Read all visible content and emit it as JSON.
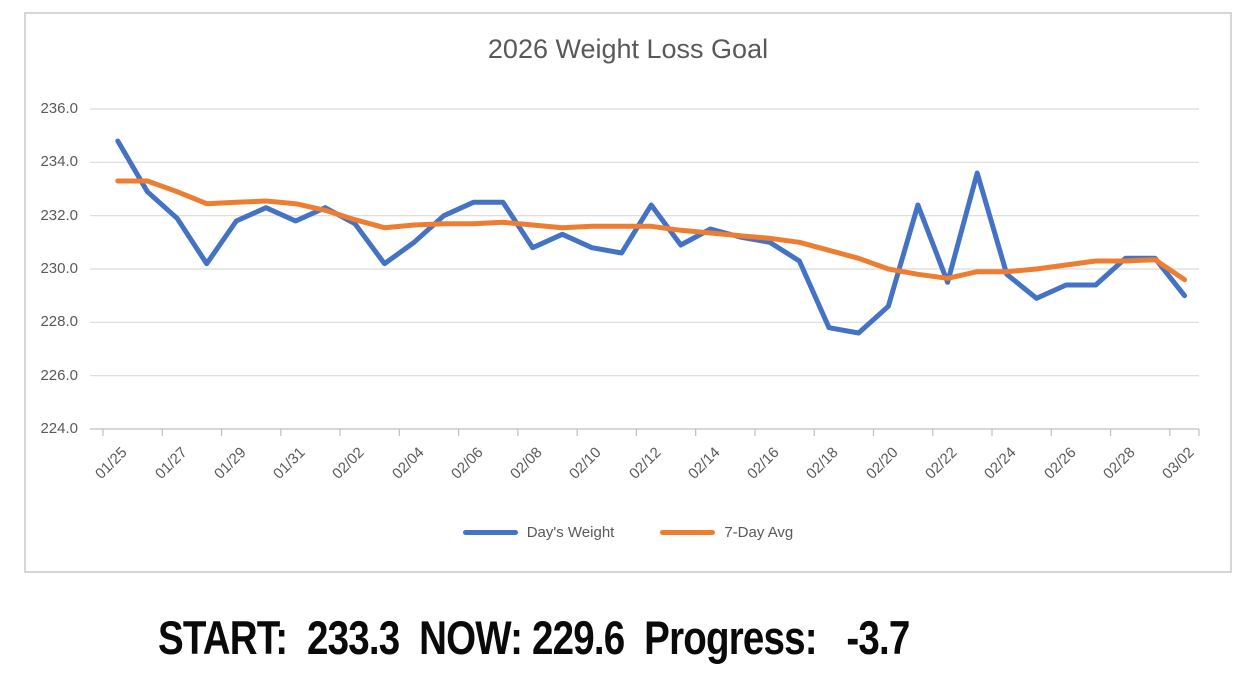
{
  "chart_data": {
    "type": "line",
    "title": "2026 Weight Loss Goal",
    "grid": "horizontal",
    "legend_position": "bottom",
    "ylim": [
      224.0,
      236.0
    ],
    "y_ticks": [
      {
        "label": "236.0",
        "value": 236.0
      },
      {
        "label": "234.0",
        "value": 234.0
      },
      {
        "label": "232.0",
        "value": 232.0
      },
      {
        "label": "230.0",
        "value": 230.0
      },
      {
        "label": "228.0",
        "value": 228.0
      },
      {
        "label": "226.0",
        "value": 226.0
      },
      {
        "label": "224.0",
        "value": 224.0
      }
    ],
    "x_tick_labels": [
      "01/25",
      "01/27",
      "01/29",
      "01/31",
      "02/02",
      "02/04",
      "02/06",
      "02/08",
      "02/10",
      "02/12",
      "02/14",
      "02/16",
      "02/18",
      "02/20",
      "02/22",
      "02/24",
      "02/26",
      "02/28",
      "03/02"
    ],
    "x_all_dates": [
      "01/25",
      "01/26",
      "01/27",
      "01/28",
      "01/29",
      "01/30",
      "01/31",
      "02/01",
      "02/02",
      "02/03",
      "02/04",
      "02/05",
      "02/06",
      "02/07",
      "02/08",
      "02/09",
      "02/10",
      "02/11",
      "02/12",
      "02/13",
      "02/14",
      "02/15",
      "02/16",
      "02/17",
      "02/18",
      "02/19",
      "02/20",
      "02/21",
      "02/22",
      "02/23",
      "02/24",
      "02/25",
      "02/26",
      "02/27",
      "02/28",
      "03/01",
      "03/02"
    ],
    "series": [
      {
        "name": "Day's Weight",
        "color": "#4472C4",
        "values": [
          234.8,
          232.9,
          231.9,
          230.2,
          231.8,
          232.3,
          231.8,
          232.3,
          231.7,
          230.2,
          231.0,
          232.0,
          232.5,
          232.5,
          230.8,
          231.3,
          230.8,
          230.6,
          232.4,
          230.9,
          231.5,
          231.2,
          231.0,
          230.3,
          227.8,
          227.6,
          228.6,
          232.4,
          229.5,
          233.6,
          229.8,
          228.9,
          229.4,
          229.4,
          230.4,
          230.4,
          229.0
        ]
      },
      {
        "name": "7-Day Avg",
        "color": "#ED7D31",
        "values": [
          233.3,
          233.3,
          232.9,
          232.45,
          232.5,
          232.55,
          232.45,
          232.2,
          231.85,
          231.55,
          231.65,
          231.7,
          231.7,
          231.75,
          231.65,
          231.55,
          231.6,
          231.6,
          231.6,
          231.45,
          231.35,
          231.25,
          231.15,
          231.0,
          230.7,
          230.4,
          230.0,
          229.8,
          229.65,
          229.9,
          229.9,
          230.0,
          230.15,
          230.3,
          230.3,
          230.35,
          229.6
        ]
      }
    ]
  },
  "summary": {
    "full_text": "START:  233.3  NOW: 229.6  Progress:   -3.7",
    "start_label": "START:",
    "start_value": "233.3",
    "now_label": "NOW:",
    "now_value": "229.6",
    "progress_label": "Progress:",
    "progress_value": "-3.7"
  },
  "colors": {
    "gridline": "#D9D9D9",
    "axis": "#BFBFBF",
    "text": "#595959",
    "series_blue": "#4472C4",
    "series_orange": "#ED7D31"
  }
}
